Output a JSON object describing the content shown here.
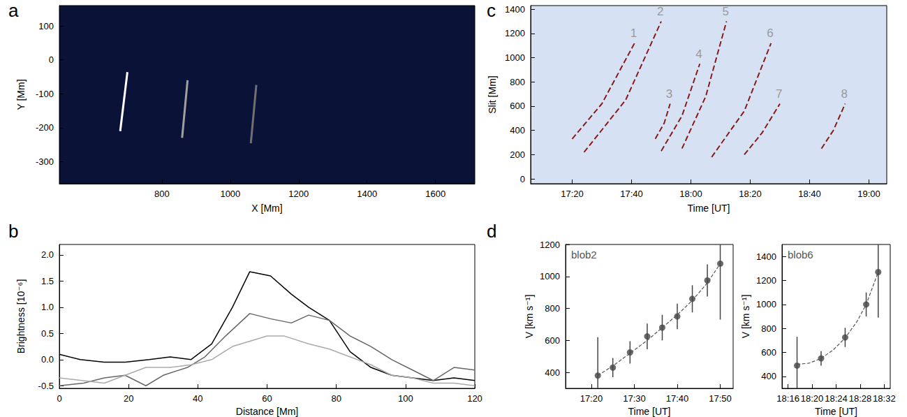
{
  "chart_data": [
    {
      "label": "a",
      "type": "line",
      "xlabel": "X [Mm]",
      "ylabel": "Y [Mm]",
      "xlim": [
        500,
        1715
      ],
      "xticks": [
        800,
        1000,
        1200,
        1400,
        1600
      ],
      "ylim": [
        -365,
        160
      ],
      "yticks": [
        -300,
        -200,
        -100,
        0,
        100
      ],
      "grid": false,
      "series": [
        {
          "color": "#ffffff",
          "x": [
            678,
            699
          ],
          "values": [
            -210,
            -36
          ]
        },
        {
          "color": "#a0a0a0",
          "x": [
            859,
            875
          ],
          "values": [
            -230,
            -60
          ]
        },
        {
          "color": "#707070",
          "x": [
            1060,
            1076
          ],
          "values": [
            -246,
            -74
          ]
        }
      ]
    },
    {
      "label": "b",
      "type": "line",
      "xlabel": "Distance [Mm]",
      "ylabel": "Brightness [10⁻⁶]",
      "xlim": [
        0,
        120
      ],
      "xticks": [
        0,
        20,
        40,
        60,
        80,
        100,
        120
      ],
      "ylim": [
        -0.55,
        2.2
      ],
      "yticks": [
        -0.5,
        {
          "value": 0,
          "label": "0.0"
        },
        0.5,
        {
          "value": 1,
          "label": "1.0"
        },
        1.5,
        {
          "value": 2,
          "label": "2.0"
        }
      ],
      "grid": false,
      "series": [
        {
          "color": "#000000",
          "x": [
            0,
            6,
            13,
            19,
            26,
            32,
            38,
            44,
            50,
            55,
            61,
            67,
            72,
            78,
            84,
            90,
            96,
            102,
            108,
            114,
            120
          ],
          "values": [
            0.1,
            0.0,
            -0.05,
            -0.05,
            0.0,
            0.05,
            0.0,
            0.3,
            1.0,
            1.68,
            1.6,
            1.25,
            1.0,
            0.75,
            0.15,
            -0.15,
            -0.3,
            -0.35,
            -0.4,
            -0.35,
            -0.4
          ]
        },
        {
          "color": "#666666",
          "x": [
            0,
            7,
            13,
            19,
            25,
            30,
            37,
            42,
            48,
            55,
            61,
            67,
            72,
            78,
            84,
            90,
            96,
            102,
            108,
            114,
            120
          ],
          "values": [
            -0.5,
            -0.45,
            -0.35,
            -0.3,
            -0.5,
            -0.3,
            -0.15,
            0.05,
            0.45,
            0.88,
            0.78,
            0.7,
            0.85,
            0.75,
            0.45,
            0.25,
            0.0,
            -0.2,
            -0.4,
            -0.15,
            -0.2
          ]
        },
        {
          "color": "#aaaaaa",
          "x": [
            0,
            13,
            25,
            32,
            38,
            44,
            50,
            55,
            60,
            65,
            72,
            78,
            84,
            90,
            96,
            102,
            108,
            114,
            120
          ],
          "values": [
            -0.35,
            -0.45,
            -0.15,
            -0.15,
            -0.1,
            0.0,
            0.25,
            0.35,
            0.45,
            0.45,
            0.3,
            0.2,
            0.05,
            -0.1,
            -0.3,
            -0.35,
            -0.45,
            -0.45,
            -0.5
          ]
        }
      ]
    },
    {
      "label": "c",
      "type": "line",
      "xlabel": "Time [UT]",
      "ylabel": "Slit [Mm]",
      "xlim": [
        1026,
        1146
      ],
      "xticks": [
        {
          "value": 1040,
          "label": "17:20"
        },
        {
          "value": 1060,
          "label": "17:40"
        },
        {
          "value": 1080,
          "label": "18:00"
        },
        {
          "value": 1100,
          "label": "18:20"
        },
        {
          "value": 1120,
          "label": "18:40"
        },
        {
          "value": 1140,
          "label": "19:00"
        }
      ],
      "ylim": [
        -40,
        1430
      ],
      "yticks": [
        0,
        200,
        400,
        600,
        800,
        1000,
        1200,
        1400
      ],
      "grid": false,
      "series": [
        {
          "name": "1",
          "color": "#8b1a1a",
          "line_style": "dashed",
          "x": [
            1040,
            1050,
            1061
          ],
          "values": [
            330,
            620,
            1120
          ]
        },
        {
          "name": "2",
          "color": "#8b1a1a",
          "line_style": "dashed",
          "x": [
            1044,
            1058,
            1070
          ],
          "values": [
            220,
            650,
            1300
          ]
        },
        {
          "name": "3",
          "color": "#8b1a1a",
          "line_style": "dashed",
          "x": [
            1068,
            1071,
            1073
          ],
          "values": [
            330,
            460,
            620
          ]
        },
        {
          "name": "4",
          "color": "#8b1a1a",
          "line_style": "dashed",
          "x": [
            1070,
            1077,
            1083
          ],
          "values": [
            230,
            520,
            950
          ]
        },
        {
          "name": "5",
          "color": "#8b1a1a",
          "line_style": "dashed",
          "x": [
            1077,
            1085,
            1092
          ],
          "values": [
            250,
            680,
            1300
          ]
        },
        {
          "name": "6",
          "color": "#8b1a1a",
          "line_style": "dashed",
          "x": [
            1087,
            1098,
            1107
          ],
          "values": [
            180,
            560,
            1120
          ]
        },
        {
          "name": "7",
          "color": "#8b1a1a",
          "line_style": "dashed",
          "x": [
            1098,
            1104,
            1110
          ],
          "values": [
            200,
            380,
            620
          ]
        },
        {
          "name": "8",
          "color": "#8b1a1a",
          "line_style": "dashed",
          "x": [
            1124,
            1128,
            1132
          ],
          "values": [
            250,
            400,
            620
          ]
        }
      ]
    },
    {
      "label": "d",
      "type": "scatter",
      "title": "blob2",
      "xlabel": "Time [UT]",
      "ylabel": "V [km s⁻¹]",
      "xlim": [
        1034,
        1073
      ],
      "xticks": [
        {
          "value": 1040,
          "label": "17:20"
        },
        {
          "value": 1050,
          "label": "17:30"
        },
        {
          "value": 1060,
          "label": "17:40"
        },
        {
          "value": 1070,
          "label": "17:50"
        }
      ],
      "ylim": [
        300,
        1200
      ],
      "yticks": [
        400,
        600,
        800,
        1000,
        1200
      ],
      "grid": false,
      "series": [
        {
          "type": "scatter",
          "color": "#444444",
          "marker": "circle",
          "x": [
            1041.5,
            1045,
            1049,
            1053,
            1056.5,
            1060,
            1063.5,
            1067,
            1070
          ],
          "values": [
            380,
            430,
            525,
            625,
            680,
            750,
            860,
            975,
            1080
          ],
          "errors": [
            240,
            60,
            70,
            80,
            80,
            80,
            85,
            100,
            350
          ]
        },
        {
          "type": "line",
          "color": "#555555",
          "line_style": "dashed",
          "x": [
            1041.5,
            1045,
            1049,
            1053,
            1056.5,
            1060,
            1063.5,
            1067,
            1070
          ],
          "values": [
            380,
            440,
            520,
            600,
            680,
            760,
            850,
            960,
            1080
          ]
        }
      ]
    },
    {
      "type": "scatter",
      "title": "blob6",
      "xlabel": "Time [UT]",
      "ylabel": "V [km s⁻¹]",
      "xlim": [
        1095,
        1113
      ],
      "xticks": [
        {
          "value": 1096,
          "label": "18:16"
        },
        {
          "value": 1100,
          "label": "18:20"
        },
        {
          "value": 1104,
          "label": "18:24"
        },
        {
          "value": 1108,
          "label": "18:28"
        },
        {
          "value": 1112,
          "label": "18:32"
        }
      ],
      "ylim": [
        300,
        1500
      ],
      "yticks": [
        400,
        600,
        800,
        1000,
        1200,
        1400
      ],
      "grid": false,
      "series": [
        {
          "type": "scatter",
          "color": "#444444",
          "marker": "circle",
          "x": [
            1097.5,
            1101.5,
            1105.5,
            1109,
            1111
          ],
          "values": [
            490,
            550,
            725,
            1000,
            1270
          ],
          "errors": [
            240,
            60,
            80,
            100,
            380
          ]
        },
        {
          "type": "line",
          "color": "#555555",
          "line_style": "dashed",
          "x": [
            1097.5,
            1099.5,
            1101.5,
            1103.5,
            1105.5,
            1107.5,
            1109,
            1111
          ],
          "values": [
            500,
            510,
            550,
            620,
            720,
            860,
            1000,
            1270
          ]
        }
      ]
    }
  ]
}
